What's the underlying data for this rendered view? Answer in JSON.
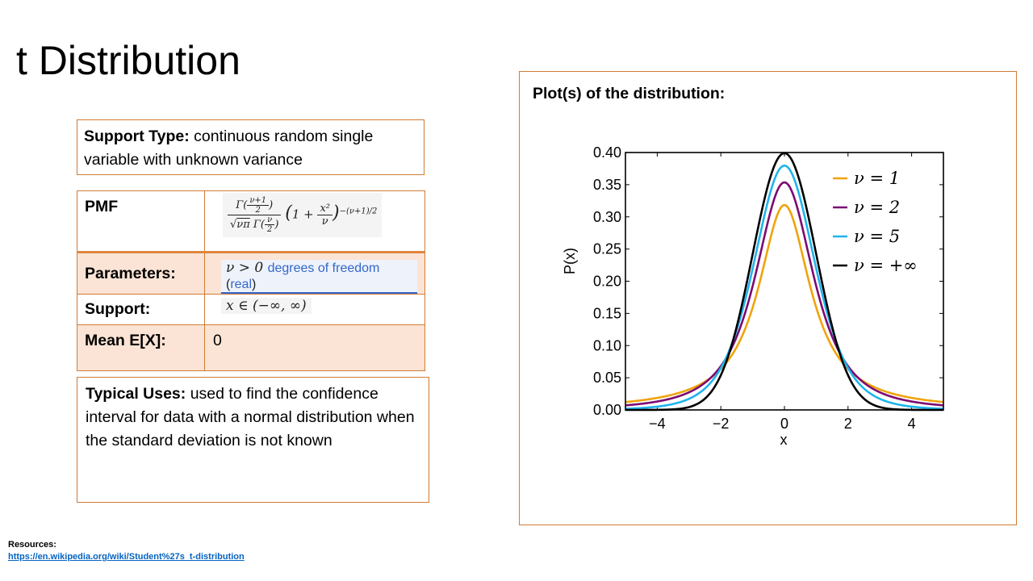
{
  "title": "t Distribution",
  "support": {
    "label": "Support Type:",
    "text": " continuous random single variable with unknown variance"
  },
  "table": {
    "pmf_label": "PMF",
    "parameters_label": "Parameters:",
    "parameters_text": "degrees of freedom",
    "parameters_link": "real",
    "support_label": "Support:",
    "mean_label": "Mean E[X]:",
    "mean_value": "0"
  },
  "uses": {
    "label": "Typical Uses:",
    "text": " used to find the confidence interval for data with a normal distribution  when the standard deviation is not known"
  },
  "plot_heading": "Plot(s) of the distribution:",
  "resources": {
    "label": "Resources:",
    "link": "https://en.wikipedia.org/wiki/Student%27s_t-distribution"
  },
  "chart_data": {
    "type": "line",
    "xlabel": "x",
    "ylabel": "P(x)",
    "xlim": [
      -5,
      5
    ],
    "ylim": [
      0,
      0.4
    ],
    "xticks": [
      -4,
      -2,
      0,
      2,
      4
    ],
    "yticks": [
      0.0,
      0.05,
      0.1,
      0.15,
      0.2,
      0.25,
      0.3,
      0.35,
      0.4
    ],
    "x": [
      -5,
      -4,
      -3,
      -2,
      -1,
      0,
      1,
      2,
      3,
      4,
      5
    ],
    "legend_position": "top-right",
    "series": [
      {
        "name": "ν = 1",
        "nu": 1,
        "color": "#f0a30a",
        "values": [
          0.0122,
          0.0187,
          0.0318,
          0.0637,
          0.1592,
          0.3183,
          0.1592,
          0.0637,
          0.0318,
          0.0187,
          0.0122
        ]
      },
      {
        "name": "ν = 2",
        "nu": 2,
        "color": "#7b0a72",
        "values": [
          0.0071,
          0.0131,
          0.0274,
          0.068,
          0.1925,
          0.3536,
          0.1925,
          0.068,
          0.0274,
          0.0131,
          0.0071
        ]
      },
      {
        "name": "ν = 5",
        "nu": 5,
        "color": "#1fb4ec",
        "values": [
          0.0018,
          0.0051,
          0.0173,
          0.0651,
          0.2197,
          0.3796,
          0.2197,
          0.0651,
          0.0173,
          0.0051,
          0.0018
        ]
      },
      {
        "name": "ν = +∞",
        "nu": "inf",
        "color": "#000000",
        "values": [
          0.0,
          0.0001,
          0.0044,
          0.054,
          0.242,
          0.3989,
          0.242,
          0.054,
          0.0044,
          0.0001,
          0.0
        ]
      }
    ]
  }
}
